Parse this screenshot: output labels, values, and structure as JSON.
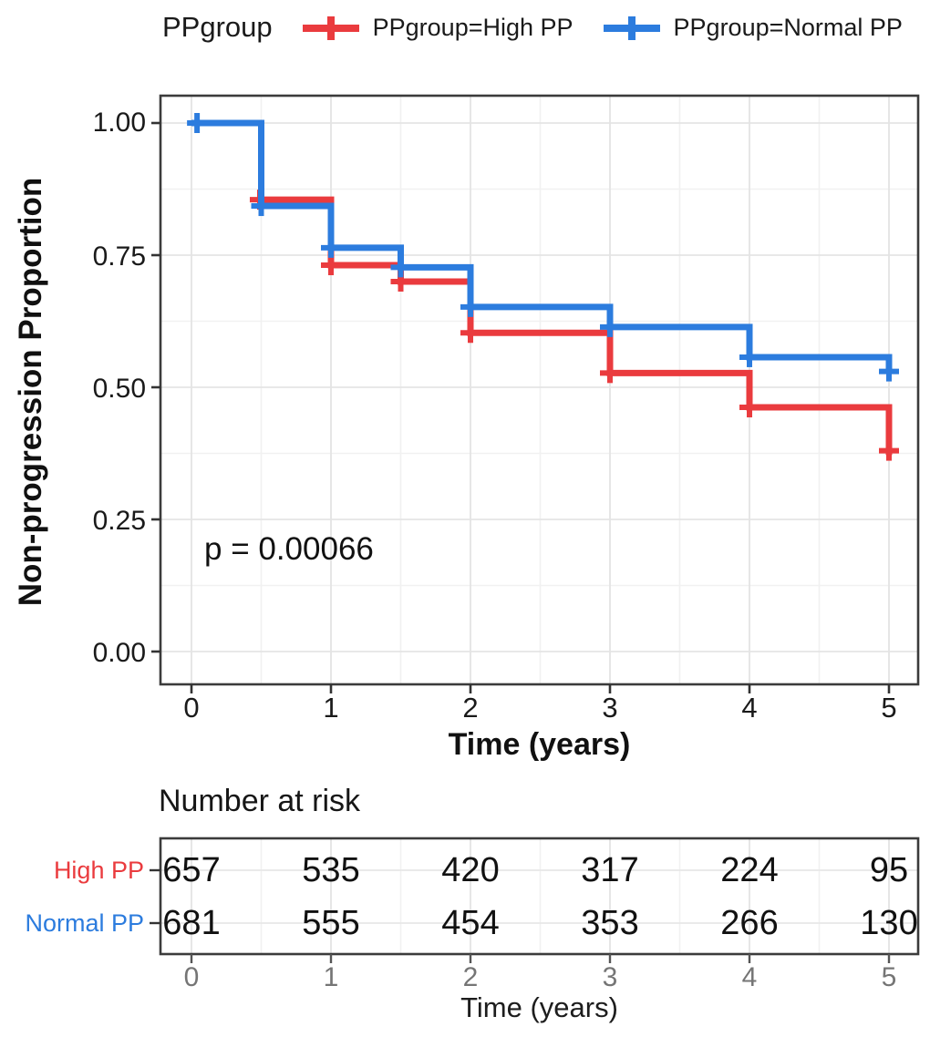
{
  "chart_data": {
    "type": "line",
    "subtype": "kaplan-meier-step",
    "title": "",
    "xlabel": "Time (years)",
    "ylabel": "Non-progression Proportion",
    "x_ticks": [
      "0",
      "1",
      "2",
      "3",
      "4",
      "5"
    ],
    "y_ticks": [
      "1.00",
      "0.75",
      "0.50",
      "0.25",
      "0.00"
    ],
    "xlim": [
      0,
      5
    ],
    "ylim": [
      0,
      1
    ],
    "grid": true,
    "legend_position": "top",
    "legend": {
      "title": "PPgroup",
      "entries": [
        {
          "label": "PPgroup=High PP",
          "color": "#EA3B3E"
        },
        {
          "label": "PPgroup=Normal PP",
          "color": "#2C7CDE"
        }
      ]
    },
    "pvalue_annotation": "p = 0.00066",
    "series": [
      {
        "name": "High PP",
        "legend_label": "PPgroup=High PP",
        "color": "#EA3B3E",
        "step_points": [
          {
            "t": 0,
            "s": 1.0
          },
          {
            "t": 0.5,
            "s": 0.855
          },
          {
            "t": 1,
            "s": 0.731
          },
          {
            "t": 1.5,
            "s": 0.7
          },
          {
            "t": 2,
            "s": 0.603
          },
          {
            "t": 3,
            "s": 0.527
          },
          {
            "t": 4,
            "s": 0.462
          },
          {
            "t": 5,
            "s": 0.372
          }
        ],
        "censor_marks": [
          {
            "t": 0.49,
            "s": 0.855
          },
          {
            "t": 1,
            "s": 0.731
          },
          {
            "t": 1.5,
            "s": 0.7
          },
          {
            "t": 2,
            "s": 0.603
          },
          {
            "t": 3,
            "s": 0.527
          },
          {
            "t": 4,
            "s": 0.462
          },
          {
            "t": 5,
            "s": 0.38
          }
        ]
      },
      {
        "name": "Normal PP",
        "legend_label": "PPgroup=Normal PP",
        "color": "#2C7CDE",
        "step_points": [
          {
            "t": 0,
            "s": 1.0
          },
          {
            "t": 0.5,
            "s": 0.843
          },
          {
            "t": 1,
            "s": 0.764
          },
          {
            "t": 1.5,
            "s": 0.727
          },
          {
            "t": 2,
            "s": 0.652
          },
          {
            "t": 3,
            "s": 0.614
          },
          {
            "t": 4,
            "s": 0.557
          },
          {
            "t": 5,
            "s": 0.525
          }
        ],
        "censor_marks": [
          {
            "t": 0.04,
            "s": 1.0
          },
          {
            "t": 0.5,
            "s": 0.843
          },
          {
            "t": 1,
            "s": 0.764
          },
          {
            "t": 1.5,
            "s": 0.727
          },
          {
            "t": 2,
            "s": 0.652
          },
          {
            "t": 3,
            "s": 0.614
          },
          {
            "t": 4,
            "s": 0.557
          },
          {
            "t": 5,
            "s": 0.53
          }
        ]
      }
    ],
    "risk_table": {
      "title": "Number at risk",
      "xlabel": "Time (years)",
      "x_ticks": [
        "0",
        "1",
        "2",
        "3",
        "4",
        "5"
      ],
      "rows": [
        {
          "label": "High PP",
          "color": "#EA3B3E",
          "values": [
            "657",
            "535",
            "420",
            "317",
            "224",
            "95"
          ]
        },
        {
          "label": "Normal PP",
          "color": "#2C7CDE",
          "values": [
            "681",
            "555",
            "454",
            "353",
            "266",
            "130"
          ]
        }
      ]
    }
  }
}
